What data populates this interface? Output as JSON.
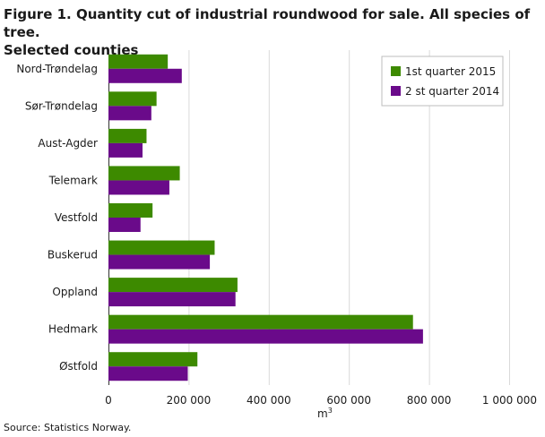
{
  "figure": {
    "title_line1": "Figure 1. Quantity cut of industrial roundwood for sale. All species of tree.",
    "title_line2": "Selected counties",
    "source": "Source: Statistics Norway."
  },
  "chart_data": {
    "type": "bar",
    "orientation": "horizontal",
    "title": "Figure 1. Quantity cut of industrial roundwood for sale. All species of tree. Selected counties",
    "xlabel": "m",
    "xlabel_superscript": "3",
    "ylabel": "",
    "xlim": [
      0,
      1000000
    ],
    "xticks": [
      0,
      200000,
      400000,
      600000,
      800000,
      1000000
    ],
    "xtick_labels": [
      "0",
      "200 000",
      "400 000",
      "600 000",
      "800 000",
      "1 000 000"
    ],
    "grid": true,
    "legend_position": "top-right",
    "categories": [
      "Nord-Trøndelag",
      "Sør-Trøndelag",
      "Aust-Agder",
      "Telemark",
      "Vestfold",
      "Buskerud",
      "Oppland",
      "Hedmark",
      "Østfold"
    ],
    "series": [
      {
        "name": "1st quarter 2015",
        "color": "#3d8a00",
        "values": [
          148000,
          120000,
          95000,
          178000,
          110000,
          265000,
          322000,
          760000,
          222000
        ]
      },
      {
        "name": "2 st quarter 2014",
        "color": "#6a0a8a",
        "values": [
          183000,
          107000,
          85000,
          152000,
          80000,
          253000,
          317000,
          785000,
          198000
        ]
      }
    ]
  }
}
